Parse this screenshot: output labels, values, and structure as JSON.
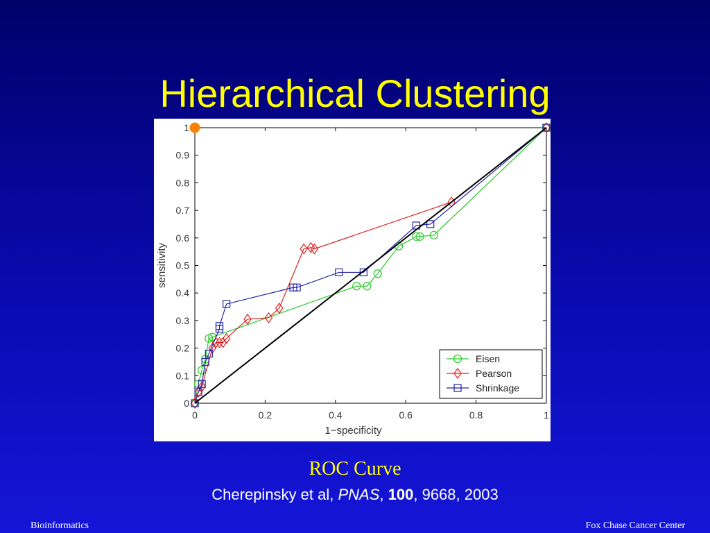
{
  "slide": {
    "title": "Hierarchical Clustering",
    "caption": "ROC Curve",
    "citation": {
      "authors": "Cherepinsky et al, ",
      "journal": "PNAS",
      "sep1": ", ",
      "volume": "100",
      "rest": ", 9668, 2003"
    },
    "footer_left": "Bioinformatics",
    "footer_right": "Fox Chase Cancer Center",
    "marker_color": "#ff7f00"
  },
  "chart_data": {
    "type": "line",
    "xlabel": "1−specificity",
    "ylabel": "sensitivity",
    "xlim": [
      0,
      1
    ],
    "ylim": [
      0,
      1
    ],
    "x_ticks": [
      "0",
      "0.2",
      "0.4",
      "0.6",
      "0.8",
      "1"
    ],
    "y_ticks": [
      "0",
      "0.1",
      "0.2",
      "0.3",
      "0.4",
      "0.5",
      "0.6",
      "0.7",
      "0.8",
      "0.9",
      "1"
    ],
    "grid": false,
    "legend_position": "bottom-right",
    "series": [
      {
        "name": "Eisen",
        "color": "#22cc22",
        "marker": "circle",
        "x": [
          0.0,
          0.01,
          0.02,
          0.03,
          0.04,
          0.05,
          0.46,
          0.49,
          0.52,
          0.58,
          0.63,
          0.64,
          0.68,
          1.0
        ],
        "y": [
          0.0,
          0.07,
          0.12,
          0.16,
          0.235,
          0.24,
          0.425,
          0.425,
          0.47,
          0.57,
          0.605,
          0.605,
          0.61,
          1.0
        ]
      },
      {
        "name": "Pearson",
        "color": "#dd2222",
        "marker": "diamond",
        "x": [
          0.0,
          0.01,
          0.02,
          0.05,
          0.06,
          0.07,
          0.08,
          0.09,
          0.15,
          0.21,
          0.24,
          0.31,
          0.33,
          0.34,
          0.73,
          1.0
        ],
        "y": [
          0.0,
          0.04,
          0.06,
          0.2,
          0.22,
          0.22,
          0.22,
          0.235,
          0.305,
          0.31,
          0.345,
          0.56,
          0.565,
          0.56,
          0.73,
          1.0
        ]
      },
      {
        "name": "Shrinkage",
        "color": "#2222aa",
        "marker": "square",
        "x": [
          0.0,
          0.01,
          0.02,
          0.03,
          0.04,
          0.07,
          0.07,
          0.09,
          0.28,
          0.29,
          0.41,
          0.48,
          0.63,
          0.67,
          1.0
        ],
        "y": [
          0.0,
          0.04,
          0.07,
          0.15,
          0.18,
          0.27,
          0.28,
          0.36,
          0.42,
          0.42,
          0.475,
          0.475,
          0.645,
          0.65,
          1.0
        ]
      }
    ],
    "diagonal": {
      "x": [
        0,
        1
      ],
      "y": [
        0,
        1
      ],
      "color": "#000000"
    },
    "highlight_point": {
      "x": 0,
      "y": 1
    }
  }
}
